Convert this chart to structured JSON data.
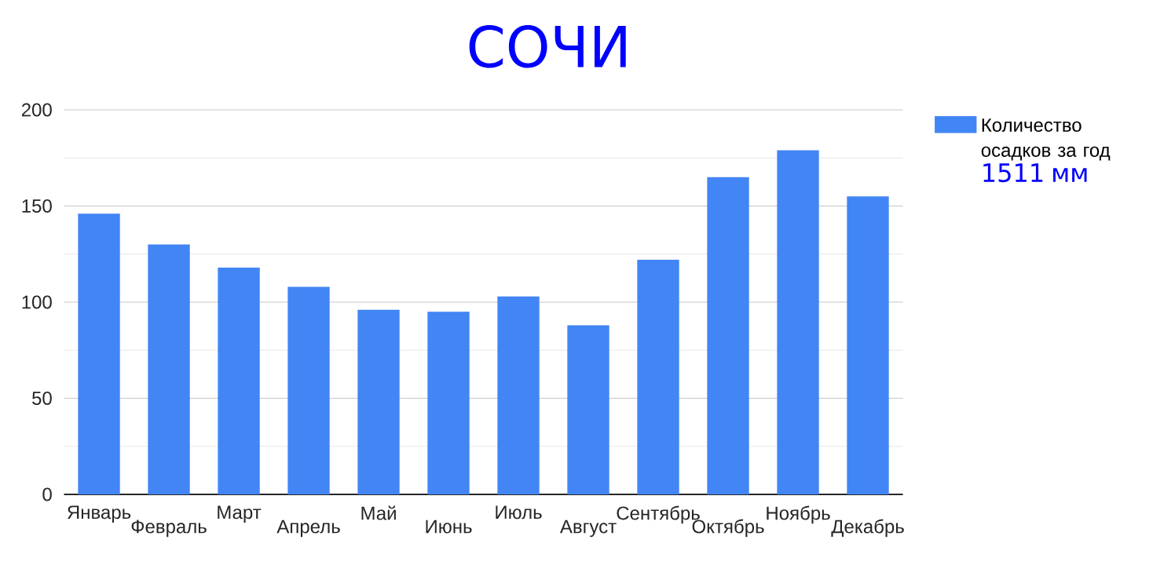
{
  "chart_data": {
    "type": "bar",
    "title": "СОЧИ",
    "categories": [
      "Январь",
      "Февраль",
      "Март",
      "Апрель",
      "Май",
      "Июнь",
      "Июль",
      "Август",
      "Сентябрь",
      "Октябрь",
      "Ноябрь",
      "Декабрь"
    ],
    "series": [
      {
        "name": "Количество осадков за год",
        "color": "#4285f4",
        "values": [
          146,
          130,
          118,
          108,
          96,
          95,
          103,
          88,
          122,
          165,
          179,
          155
        ]
      }
    ],
    "annotations": [
      "1511 мм"
    ],
    "ylim": [
      0,
      200
    ],
    "yticks": [
      0,
      50,
      100,
      150,
      200
    ],
    "grid": "y",
    "legend": "right"
  }
}
